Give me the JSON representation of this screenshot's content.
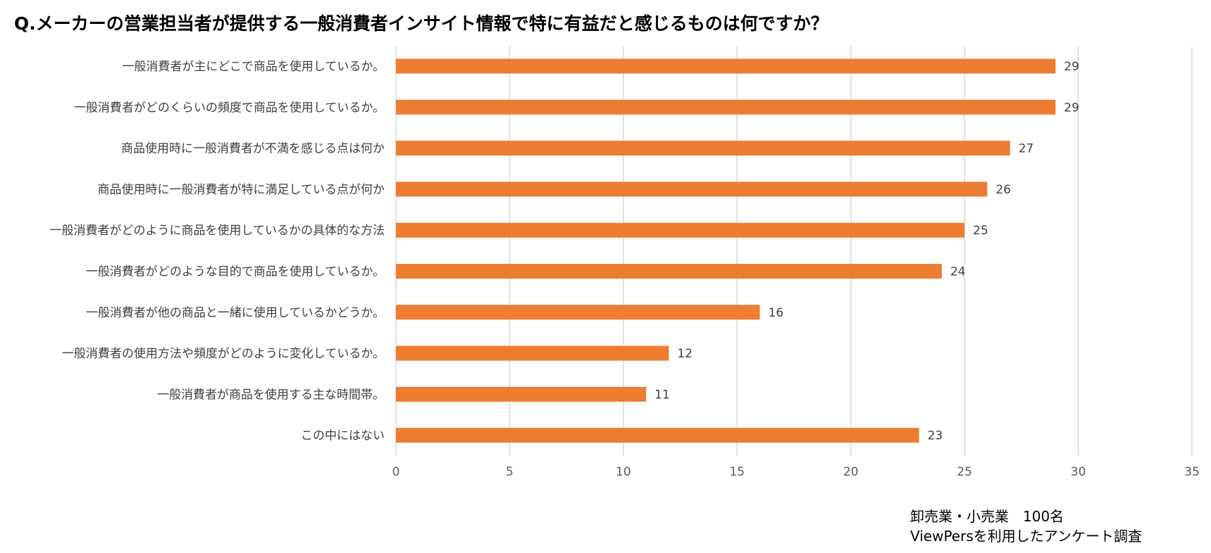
{
  "title": "Q.メーカーの営業担当者が提供する一般消費者インサイト情報で特に有益だと感じるものは何ですか？",
  "notes": {
    "line1": "卸売業・小売業　100名",
    "line2": "ViewPersを利用したアンケート調査"
  },
  "colors": {
    "bar": "#ED7D31",
    "grid": "#D9D9D9",
    "text": "#404040"
  },
  "chart_data": {
    "type": "bar",
    "orientation": "horizontal",
    "categories": [
      "一般消費者が主にどこで商品を使用しているか。",
      "一般消費者がどのくらいの頻度で商品を使用しているか。",
      "商品使用時に一般消費者が不満を感じる点は何か",
      "商品使用時に一般消費者が特に満足している点が何か",
      "一般消費者がどのように商品を使用しているかの具体的な方法",
      "一般消費者がどのような目的で商品を使用しているか。",
      "一般消費者が他の商品と一緒に使用しているかどうか。",
      "一般消費者の使用方法や頻度がどのように変化しているか。",
      "一般消費者が商品を使用する主な時間帯。",
      "この中にはない"
    ],
    "values": [
      29,
      29,
      27,
      26,
      25,
      24,
      16,
      12,
      11,
      23
    ],
    "xlim": [
      0,
      35
    ],
    "xticks": [
      0,
      5,
      10,
      15,
      20,
      25,
      30,
      35
    ],
    "grid": true,
    "data_labels": true,
    "legend": false
  }
}
